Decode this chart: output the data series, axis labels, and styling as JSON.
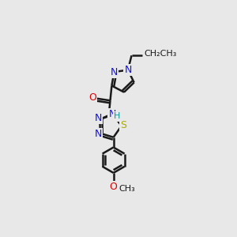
{
  "bg_color": "#e8e8e8",
  "bond_color": "#1a1a1a",
  "bond_lw": 1.8,
  "dbo": 0.013,
  "atom_colors": {
    "N": "#1010ee",
    "O": "#dd0000",
    "S": "#aaaa00",
    "H": "#009999",
    "C": "#1a1a1a"
  },
  "afs": 9,
  "sfs": 8
}
